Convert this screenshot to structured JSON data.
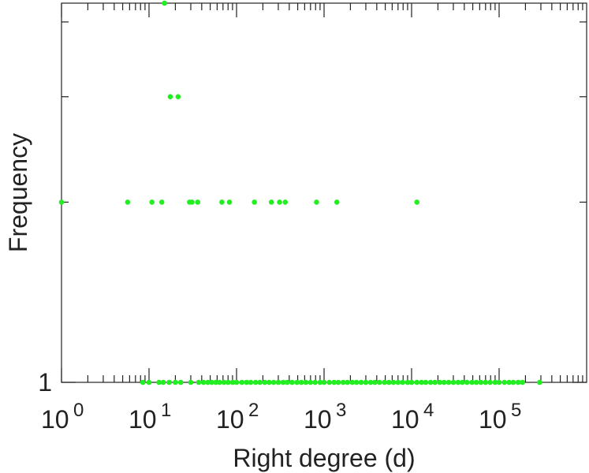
{
  "chart_data": {
    "type": "scatter",
    "title": "",
    "xlabel": "Right degree (d)",
    "ylabel": "Frequency",
    "x_scale": "log",
    "y_scale": "log",
    "xlim": [
      1,
      1000000
    ],
    "ylim": [
      1,
      4.3
    ],
    "grid": false,
    "marker_color": "#22ee22",
    "x_ticks": [
      {
        "value": 1,
        "base": "10",
        "exp": "0"
      },
      {
        "value": 10,
        "base": "10",
        "exp": "1"
      },
      {
        "value": 100,
        "base": "10",
        "exp": "2"
      },
      {
        "value": 1000,
        "base": "10",
        "exp": "3"
      },
      {
        "value": 10000,
        "base": "10",
        "exp": "4"
      },
      {
        "value": 100000,
        "base": "10",
        "exp": "5"
      }
    ],
    "y_ticks": [
      {
        "value": 1,
        "label": "1"
      }
    ],
    "series": [
      {
        "points": [
          {
            "x": 1,
            "y": 2
          },
          {
            "x": 5.7,
            "y": 2
          },
          {
            "x": 10.8,
            "y": 2
          },
          {
            "x": 14,
            "y": 2
          },
          {
            "x": 29,
            "y": 2
          },
          {
            "x": 31,
            "y": 2
          },
          {
            "x": 36,
            "y": 2
          },
          {
            "x": 68,
            "y": 2
          },
          {
            "x": 83,
            "y": 2
          },
          {
            "x": 160,
            "y": 2
          },
          {
            "x": 250,
            "y": 2
          },
          {
            "x": 310,
            "y": 2
          },
          {
            "x": 360,
            "y": 2
          },
          {
            "x": 820,
            "y": 2
          },
          {
            "x": 1400,
            "y": 2
          },
          {
            "x": 11500,
            "y": 2
          },
          {
            "x": 15,
            "y": 4.3
          },
          {
            "x": 17.5,
            "y": 3
          },
          {
            "x": 21.5,
            "y": 3
          },
          {
            "x": 8.5,
            "y": 1
          },
          {
            "x": 10,
            "y": 1
          },
          {
            "x": 13,
            "y": 1
          },
          {
            "x": 14.5,
            "y": 1
          },
          {
            "x": 17,
            "y": 1
          },
          {
            "x": 20,
            "y": 1
          },
          {
            "x": 23,
            "y": 1
          },
          {
            "x": 30,
            "y": 1
          },
          {
            "x": 37,
            "y": 1
          },
          {
            "x": 42,
            "y": 1
          },
          {
            "x": 47,
            "y": 1
          },
          {
            "x": 52,
            "y": 1
          },
          {
            "x": 58,
            "y": 1
          },
          {
            "x": 64,
            "y": 1
          },
          {
            "x": 72,
            "y": 1
          },
          {
            "x": 80,
            "y": 1
          },
          {
            "x": 90,
            "y": 1
          },
          {
            "x": 100,
            "y": 1
          },
          {
            "x": 115,
            "y": 1
          },
          {
            "x": 130,
            "y": 1
          },
          {
            "x": 145,
            "y": 1
          },
          {
            "x": 165,
            "y": 1
          },
          {
            "x": 185,
            "y": 1
          },
          {
            "x": 210,
            "y": 1
          },
          {
            "x": 235,
            "y": 1
          },
          {
            "x": 265,
            "y": 1
          },
          {
            "x": 300,
            "y": 1
          },
          {
            "x": 340,
            "y": 1
          },
          {
            "x": 380,
            "y": 1
          },
          {
            "x": 430,
            "y": 1
          },
          {
            "x": 490,
            "y": 1
          },
          {
            "x": 550,
            "y": 1
          },
          {
            "x": 620,
            "y": 1
          },
          {
            "x": 700,
            "y": 1
          },
          {
            "x": 790,
            "y": 1
          },
          {
            "x": 900,
            "y": 1
          },
          {
            "x": 1000,
            "y": 1
          },
          {
            "x": 1150,
            "y": 1
          },
          {
            "x": 1300,
            "y": 1
          },
          {
            "x": 1450,
            "y": 1
          },
          {
            "x": 1650,
            "y": 1
          },
          {
            "x": 1850,
            "y": 1
          },
          {
            "x": 2100,
            "y": 1
          },
          {
            "x": 2350,
            "y": 1
          },
          {
            "x": 2650,
            "y": 1
          },
          {
            "x": 3000,
            "y": 1
          },
          {
            "x": 3400,
            "y": 1
          },
          {
            "x": 3800,
            "y": 1
          },
          {
            "x": 4300,
            "y": 1
          },
          {
            "x": 4900,
            "y": 1
          },
          {
            "x": 5500,
            "y": 1
          },
          {
            "x": 6200,
            "y": 1
          },
          {
            "x": 7000,
            "y": 1
          },
          {
            "x": 7900,
            "y": 1
          },
          {
            "x": 9000,
            "y": 1
          },
          {
            "x": 10000,
            "y": 1
          },
          {
            "x": 11500,
            "y": 1
          },
          {
            "x": 13000,
            "y": 1
          },
          {
            "x": 14500,
            "y": 1
          },
          {
            "x": 16500,
            "y": 1
          },
          {
            "x": 18500,
            "y": 1
          },
          {
            "x": 21000,
            "y": 1
          },
          {
            "x": 23500,
            "y": 1
          },
          {
            "x": 26500,
            "y": 1
          },
          {
            "x": 30000,
            "y": 1
          },
          {
            "x": 34000,
            "y": 1
          },
          {
            "x": 38000,
            "y": 1
          },
          {
            "x": 43000,
            "y": 1
          },
          {
            "x": 49000,
            "y": 1
          },
          {
            "x": 55000,
            "y": 1
          },
          {
            "x": 62000,
            "y": 1
          },
          {
            "x": 70000,
            "y": 1
          },
          {
            "x": 79000,
            "y": 1
          },
          {
            "x": 90000,
            "y": 1
          },
          {
            "x": 100000,
            "y": 1
          },
          {
            "x": 115000,
            "y": 1
          },
          {
            "x": 130000,
            "y": 1
          },
          {
            "x": 145000,
            "y": 1
          },
          {
            "x": 165000,
            "y": 1
          },
          {
            "x": 185000,
            "y": 1
          },
          {
            "x": 290000,
            "y": 1
          }
        ]
      }
    ]
  }
}
